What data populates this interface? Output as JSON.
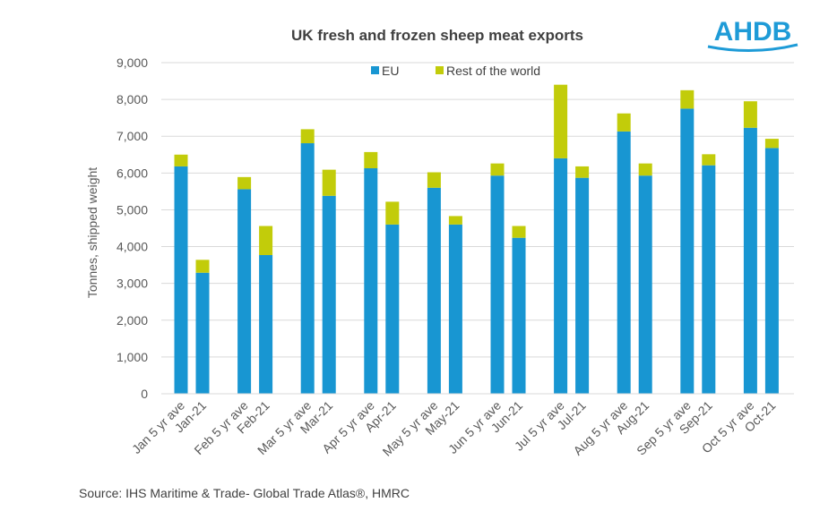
{
  "logo": {
    "text": "AHDB",
    "color": "#1e9bd7"
  },
  "source": "Source: IHS Maritime & Trade- Global Trade Atlas®, HMRC",
  "chart_data": {
    "type": "bar",
    "stacked": true,
    "title": "UK fresh and frozen sheep meat exports",
    "ylabel": "Tonnes, shipped weight",
    "xlabel": "",
    "ylim": [
      0,
      9000
    ],
    "yticks": [
      0,
      1000,
      2000,
      3000,
      4000,
      5000,
      6000,
      7000,
      8000,
      9000
    ],
    "ytick_labels": [
      "0",
      "1,000",
      "2,000",
      "3,000",
      "4,000",
      "5,000",
      "6,000",
      "7,000",
      "8,000",
      "9,000"
    ],
    "grid": true,
    "legend_position": "top",
    "categories": [
      "Jan 5 yr ave",
      "Jan-21",
      "Feb 5 yr ave",
      "Feb-21",
      "Mar 5 yr ave",
      "Mar-21",
      "Apr 5 yr ave",
      "Apr-21",
      "May 5 yr ave",
      "May-21",
      "Jun 5 yr ave",
      "Jun-21",
      "Jul 5 yr ave",
      "Jul-21",
      "Aug 5 yr ave",
      "Aug-21",
      "Sep 5 yr ave",
      "Sep-21",
      "Oct 5 yr ave",
      "Oct-21"
    ],
    "series": [
      {
        "name": "EU",
        "color": "#1896d2",
        "values": [
          6180,
          3290,
          5560,
          3770,
          6810,
          5380,
          6130,
          4600,
          5600,
          4600,
          5930,
          4240,
          6400,
          5870,
          7130,
          5930,
          7750,
          6210,
          7230,
          6680
        ]
      },
      {
        "name": "Rest of the world",
        "color": "#c2cc0a",
        "values": [
          320,
          350,
          330,
          790,
          380,
          710,
          440,
          620,
          420,
          230,
          330,
          320,
          2000,
          310,
          490,
          330,
          500,
          300,
          720,
          250
        ]
      }
    ]
  }
}
